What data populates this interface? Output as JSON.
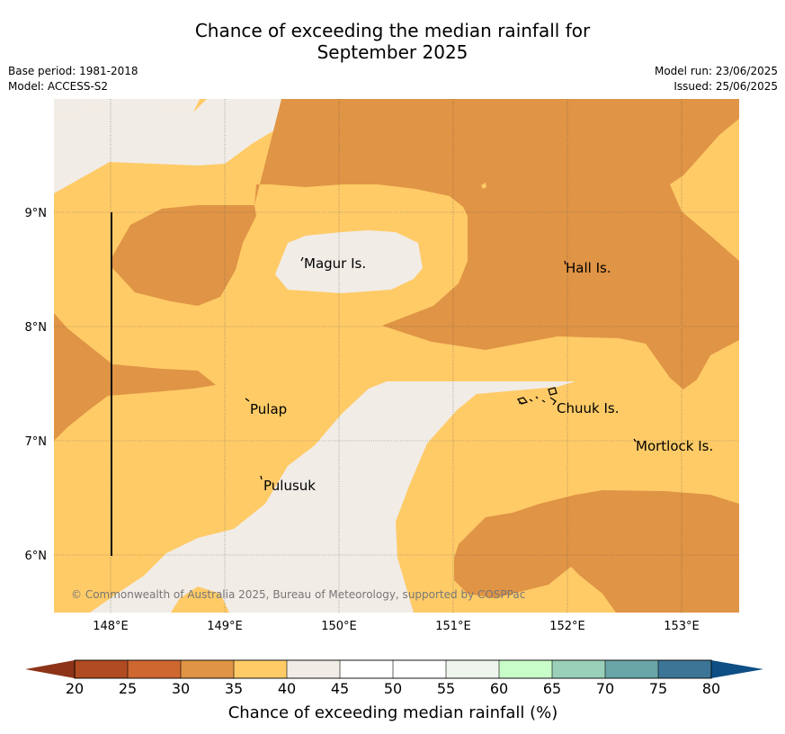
{
  "title_line1": "Chance of exceeding the median rainfall for",
  "title_line2": "September 2025",
  "base_period": "Base period: 1981-2018",
  "model": "Model: ACCESS-S2",
  "model_run": "Model run: 23/06/2025",
  "issued": "Issued: 25/06/2025",
  "copyright": "© Commonwealth of Australia 2025, Bureau of Meteorology, supported by COSPPac",
  "lon_labels": [
    "148°E",
    "149°E",
    "150°E",
    "151°E",
    "152°E",
    "153°E"
  ],
  "lat_labels": [
    "9°N",
    "8°N",
    "7°N",
    "6°N"
  ],
  "places": {
    "magur": "Magur Is.",
    "hall": "Hall Is.",
    "pulap": "Pulap",
    "chuuk": "Chuuk Is.",
    "mortlock": "Mortlock Is.",
    "pulusuk": "Pulusuk"
  },
  "colorbar": {
    "title": "Chance of exceeding median rainfall (%)",
    "labels": [
      "20",
      "25",
      "30",
      "35",
      "40",
      "45",
      "50",
      "55",
      "60",
      "65",
      "70",
      "75",
      "80"
    ],
    "colors": [
      "#b04b22",
      "#cf6730",
      "#e09445",
      "#ffcb67",
      "#f1ece6",
      "#ffffff",
      "#ffffff",
      "#eef5ec",
      "#c8fcc8",
      "#9ad0b9",
      "#6aa5a8",
      "#3d7596"
    ],
    "under_color": "#8d3318",
    "over_color": "#0e4f85"
  },
  "map_colors": {
    "30-35": "#e09445",
    "35-40": "#ffcb67",
    "40-45": "#f1ece6"
  }
}
